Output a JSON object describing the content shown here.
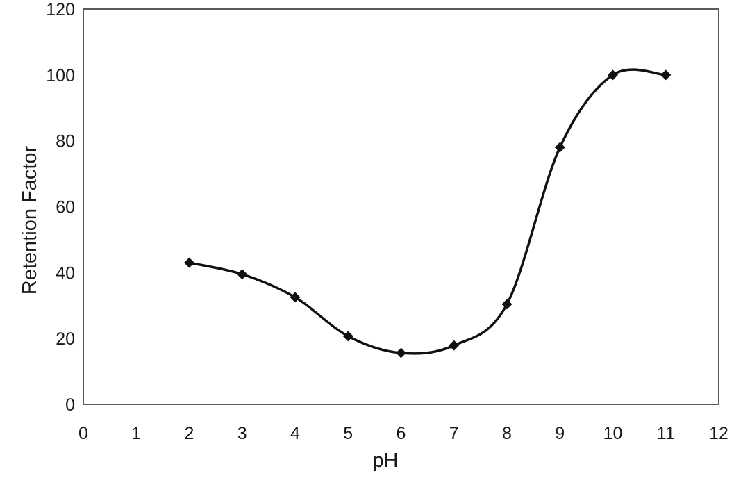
{
  "chart_data": {
    "type": "line",
    "title": "",
    "xlabel": "pH",
    "ylabel": "Retention Factor",
    "xlim": [
      0,
      12
    ],
    "ylim": [
      0,
      120
    ],
    "x_ticks": [
      0,
      1,
      2,
      3,
      4,
      5,
      6,
      7,
      8,
      9,
      10,
      11,
      12
    ],
    "y_ticks": [
      0,
      20,
      40,
      60,
      80,
      100,
      120
    ],
    "grid": false,
    "legend": null,
    "smooth": true,
    "marker": "diamond",
    "series": [
      {
        "name": "Retention Factor",
        "color": "#111111",
        "x": [
          2,
          3,
          4,
          5,
          6,
          7,
          8,
          9,
          10,
          11
        ],
        "values": [
          43,
          39.5,
          32.5,
          20.7,
          15.6,
          17.9,
          30.4,
          78,
          100,
          100
        ]
      }
    ]
  },
  "colors": {
    "frame": "#5a5a5a",
    "line": "#111111",
    "text": "#1a1a1a"
  }
}
